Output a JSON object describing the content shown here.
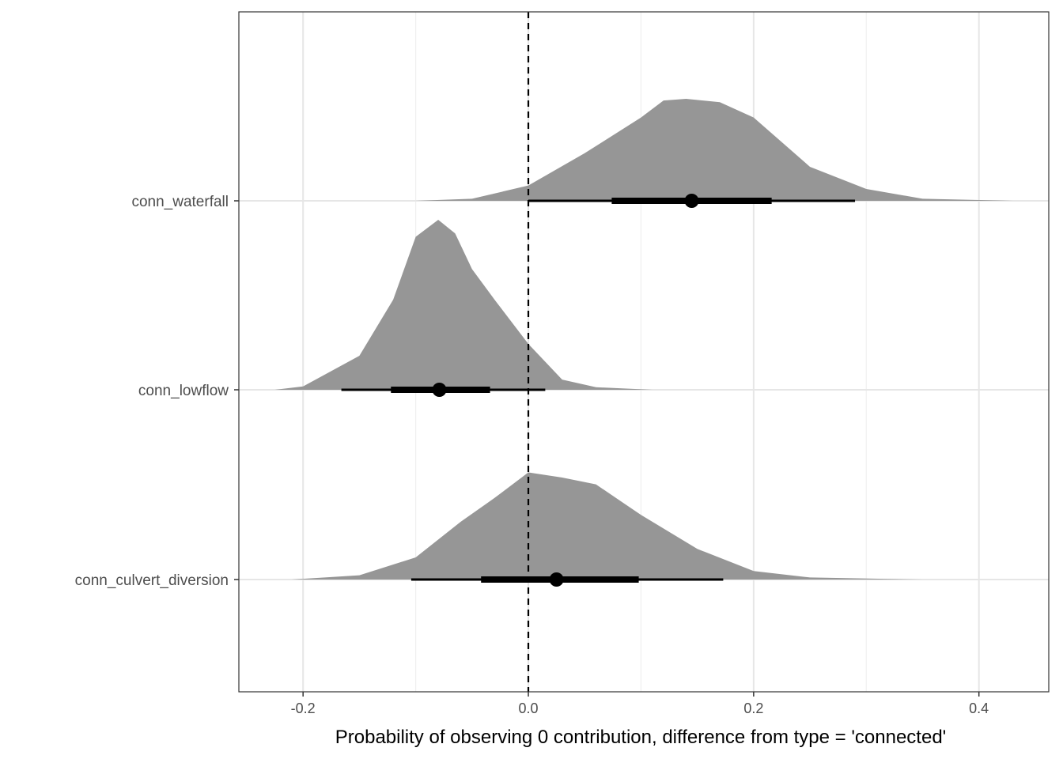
{
  "chart_data": {
    "type": "halfeye",
    "title": "",
    "xlabel": "Probability of observing 0 contribution, difference from type = 'connected'",
    "ylabel": "",
    "xlim": [
      -0.257,
      0.462
    ],
    "xticks": [
      -0.2,
      0.0,
      0.2,
      0.4
    ],
    "xtick_labels": [
      "-0.2",
      "0.0",
      "0.2",
      "0.4"
    ],
    "minor_xticks": [
      -0.1,
      0.1,
      0.3
    ],
    "grid": true,
    "reference_line": {
      "x": 0,
      "style": "dashed",
      "color": "#000000"
    },
    "fill_color": "#969696",
    "series": [
      {
        "name": "conn_waterfall",
        "point": 0.145,
        "interval_66": [
          0.074,
          0.216
        ],
        "interval_95": [
          0.0,
          0.29
        ],
        "density": [
          [
            -0.1,
            0
          ],
          [
            -0.05,
            0.012
          ],
          [
            0,
            0.09
          ],
          [
            0.05,
            0.28
          ],
          [
            0.1,
            0.49
          ],
          [
            0.12,
            0.59
          ],
          [
            0.14,
            0.6
          ],
          [
            0.17,
            0.58
          ],
          [
            0.2,
            0.49
          ],
          [
            0.25,
            0.2
          ],
          [
            0.3,
            0.07
          ],
          [
            0.35,
            0.012
          ],
          [
            0.43,
            0
          ]
        ]
      },
      {
        "name": "conn_lowflow",
        "point": -0.079,
        "interval_66": [
          -0.122,
          -0.034
        ],
        "interval_95": [
          -0.166,
          0.015
        ],
        "density": [
          [
            -0.225,
            0
          ],
          [
            -0.2,
            0.02
          ],
          [
            -0.15,
            0.2
          ],
          [
            -0.12,
            0.53
          ],
          [
            -0.1,
            0.9
          ],
          [
            -0.08,
            1.0
          ],
          [
            -0.065,
            0.92
          ],
          [
            -0.05,
            0.71
          ],
          [
            -0.03,
            0.53
          ],
          [
            0,
            0.27
          ],
          [
            0.03,
            0.06
          ],
          [
            0.06,
            0.015
          ],
          [
            0.11,
            0
          ]
        ]
      },
      {
        "name": "conn_culvert_diversion",
        "point": 0.025,
        "interval_66": [
          -0.042,
          0.098
        ],
        "interval_95": [
          -0.104,
          0.173
        ],
        "density": [
          [
            -0.21,
            0
          ],
          [
            -0.15,
            0.025
          ],
          [
            -0.1,
            0.13
          ],
          [
            -0.06,
            0.34
          ],
          [
            -0.03,
            0.48
          ],
          [
            0,
            0.63
          ],
          [
            0.03,
            0.6
          ],
          [
            0.06,
            0.56
          ],
          [
            0.1,
            0.38
          ],
          [
            0.15,
            0.18
          ],
          [
            0.2,
            0.05
          ],
          [
            0.25,
            0.012
          ],
          [
            0.35,
            0
          ]
        ]
      }
    ]
  }
}
